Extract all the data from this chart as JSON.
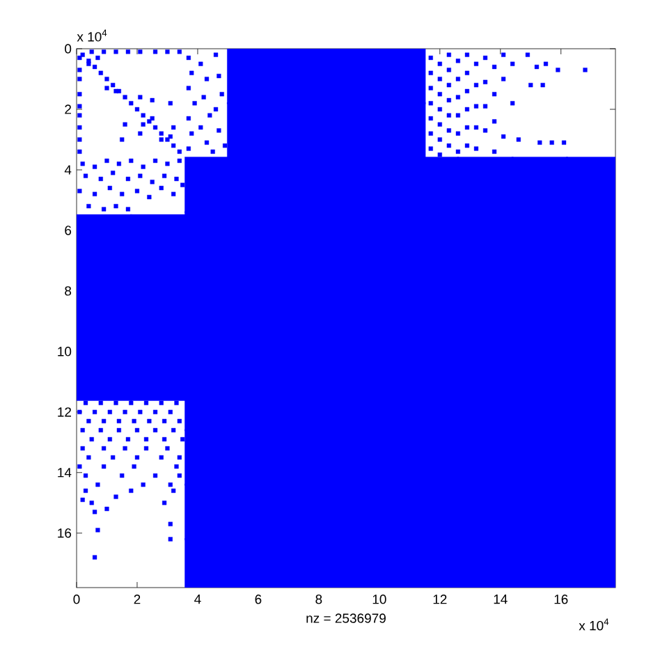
{
  "chart_data": {
    "type": "scatter",
    "xlabel": "nz = 2536979",
    "annotations": [
      "x 10$^{4}$",
      "x 10$^{4}$"
    ],
    "xlim": [
      0,
      17.8
    ],
    "ylim": [
      17.8,
      0
    ],
    "xticks": [
      0,
      2,
      4,
      6,
      8,
      10,
      12,
      14,
      16
    ],
    "yticks": [
      0,
      2,
      4,
      6,
      8,
      10,
      12,
      14,
      16
    ],
    "marker": "square",
    "series": [
      {
        "color": "#0000ff",
        "x": [
          4.5,
          6.3,
          8.1,
          9.9,
          11.7,
          13.5,
          15.3,
          17.1,
          4.5,
          6.3,
          8.1,
          9.9,
          11.7,
          13.5,
          15.3,
          17.1,
          4.5,
          6.3,
          8.1,
          9.9,
          11.7,
          13.5,
          15.3,
          17.1,
          4.5,
          6.3,
          8.1,
          9.9,
          11.7,
          13.5,
          15.3,
          17.1,
          4.5,
          6.3,
          8.1,
          9.9,
          11.7,
          13.5,
          15.3,
          17.1,
          4.5,
          6.3,
          8.1,
          9.9,
          11.7,
          13.5,
          15.3,
          17.1,
          4.5,
          6.3,
          8.1,
          9.9,
          11.7,
          13.5,
          15.3,
          17.1,
          4.5,
          6.3,
          8.1,
          9.9,
          11.7,
          13.5,
          15.3,
          17.1,
          5.9,
          7.5,
          9.1,
          10.6,
          5.9,
          7.5,
          9.1,
          10.6,
          0.9,
          2.7,
          0.9,
          2.7,
          0.9,
          2.7,
          0.9,
          2.7
        ],
        "values": [
          4.5,
          4.5,
          4.5,
          4.5,
          4.5,
          4.5,
          4.5,
          4.5,
          6.3,
          6.3,
          6.3,
          6.3,
          6.3,
          6.3,
          6.3,
          6.3,
          8.1,
          8.1,
          8.1,
          8.1,
          8.1,
          8.1,
          8.1,
          8.1,
          9.9,
          9.9,
          9.9,
          9.9,
          9.9,
          9.9,
          9.9,
          9.9,
          11.7,
          11.7,
          11.7,
          11.7,
          11.7,
          11.7,
          11.7,
          11.7,
          13.5,
          13.5,
          13.5,
          13.5,
          13.5,
          13.5,
          13.5,
          13.5,
          15.3,
          15.3,
          15.3,
          15.3,
          15.3,
          15.3,
          15.3,
          15.3,
          17.1,
          17.1,
          17.1,
          17.1,
          17.1,
          17.1,
          17.1,
          17.1,
          0.9,
          0.9,
          0.9,
          0.9,
          2.7,
          2.7,
          2.7,
          2.7,
          6.4,
          6.4,
          7.8,
          7.8,
          9.3,
          9.3,
          10.7,
          10.7
        ]
      },
      {
        "color": "#0000ff",
        "x": [
          0.2,
          0.4,
          0.6,
          0.8,
          1.0,
          1.2,
          1.4,
          1.6,
          1.8,
          2.0,
          2.2,
          2.4,
          2.6,
          2.8,
          3.0,
          3.2,
          3.4,
          1.0,
          1.3,
          2.2,
          2.5,
          2.8,
          3.1,
          0.1,
          0.1,
          0.1,
          0.1,
          0.1,
          0.1,
          0.1,
          0.1,
          0.1,
          0.5,
          0.9,
          1.3,
          1.7,
          2.1,
          2.6,
          3.0,
          3.4,
          0.4,
          0.7,
          2.1,
          2.5,
          3.1,
          1.6,
          1.5,
          2.1,
          3.2
        ],
        "values": [
          0.2,
          0.4,
          0.6,
          0.8,
          1.0,
          1.2,
          1.4,
          1.6,
          1.8,
          2.0,
          2.2,
          2.4,
          2.6,
          2.8,
          3.0,
          3.2,
          3.4,
          1.3,
          1.4,
          2.5,
          2.3,
          3.0,
          2.9,
          0.3,
          0.7,
          1.0,
          1.5,
          1.9,
          2.2,
          2.6,
          3.0,
          3.4,
          0.1,
          0.1,
          0.1,
          0.1,
          0.1,
          0.1,
          0.1,
          0.1,
          0.5,
          0.3,
          1.6,
          1.7,
          1.8,
          2.5,
          3.0,
          2.8,
          2.6
        ]
      },
      {
        "color": "#0000ff",
        "x": [
          3.7,
          3.8,
          3.7,
          3.9,
          3.7,
          3.8,
          3.7,
          4.1,
          4.3,
          4.2,
          4.4,
          4.1,
          4.3,
          4.6,
          4.7,
          4.8,
          4.6,
          4.7,
          4.9,
          4.5,
          0.2,
          0.6,
          1.0,
          1.4,
          1.8,
          2.2,
          2.6,
          3.0,
          3.4,
          0.3,
          0.8,
          1.2,
          1.7,
          2.1,
          2.5,
          2.9,
          3.3,
          0.1,
          0.6,
          1.1,
          1.5,
          2.0,
          2.4,
          2.8,
          3.2,
          3.5,
          0.4,
          0.9,
          1.3,
          1.7
        ],
        "values": [
          0.3,
          0.8,
          1.3,
          1.8,
          2.3,
          2.8,
          3.3,
          0.5,
          1.0,
          1.6,
          2.2,
          2.6,
          3.1,
          0.2,
          0.9,
          1.5,
          2.0,
          2.7,
          3.2,
          3.4,
          3.8,
          3.9,
          3.7,
          3.8,
          3.7,
          3.9,
          3.7,
          3.8,
          3.7,
          4.2,
          4.3,
          4.1,
          4.3,
          4.2,
          4.4,
          4.2,
          4.3,
          4.7,
          4.8,
          4.6,
          4.8,
          4.7,
          4.9,
          4.6,
          4.8,
          4.5,
          5.2,
          5.3,
          5.2,
          5.3
        ]
      },
      {
        "color": "#0000ff",
        "x": [
          11.7,
          11.7,
          11.7,
          11.7,
          11.7,
          11.7,
          11.7,
          12.0,
          12.0,
          12.0,
          12.0,
          12.0,
          12.0,
          12.0,
          12.3,
          12.3,
          12.3,
          12.3,
          12.3,
          12.3,
          12.3,
          12.6,
          12.6,
          12.6,
          12.6,
          12.6,
          12.6,
          12.9,
          12.9,
          12.9,
          12.9,
          12.9,
          12.9,
          13.2,
          13.2,
          13.2,
          13.2,
          13.2,
          13.5,
          13.5,
          13.5,
          13.5,
          13.8,
          13.8,
          13.8,
          13.8,
          14.1,
          14.1,
          14.1,
          14.4,
          14.4,
          14.9,
          15.2,
          15.5,
          15.0,
          15.4,
          15.9,
          16.8,
          15.3,
          15.7,
          16.1,
          14.6
        ],
        "values": [
          0.3,
          0.8,
          1.3,
          1.8,
          2.3,
          2.8,
          3.3,
          0.5,
          1.0,
          1.5,
          2.0,
          2.5,
          3.0,
          3.5,
          0.2,
          0.7,
          1.2,
          1.7,
          2.2,
          2.7,
          3.2,
          0.4,
          1.0,
          1.6,
          2.2,
          2.8,
          3.4,
          0.2,
          0.8,
          1.4,
          2.0,
          2.6,
          3.2,
          0.5,
          1.2,
          1.9,
          2.6,
          3.3,
          0.3,
          1.1,
          1.9,
          2.7,
          0.6,
          1.5,
          2.4,
          3.4,
          0.2,
          1.0,
          2.9,
          0.5,
          1.8,
          0.2,
          0.6,
          0.5,
          1.2,
          1.2,
          0.7,
          0.7,
          3.1,
          3.1,
          3.1,
          3.0
        ]
      },
      {
        "color": "#0000ff",
        "x": [
          0.3,
          0.8,
          1.3,
          1.8,
          2.3,
          2.8,
          3.3,
          0.1,
          0.6,
          1.1,
          1.6,
          2.1,
          2.6,
          3.1,
          0.4,
          0.9,
          1.4,
          1.9,
          2.4,
          2.9,
          3.4,
          0.2,
          0.8,
          1.4,
          2.0,
          2.6,
          3.2,
          0.5,
          1.1,
          1.7,
          2.3,
          2.9,
          3.5,
          0.2,
          0.9,
          1.6,
          2.3,
          3.0,
          0.4,
          1.2,
          2.0,
          2.8,
          3.4,
          0.1,
          0.9,
          1.9,
          3.3,
          0.3,
          1.5,
          2.6,
          3.4,
          0.7,
          2.2,
          3.1,
          0.6,
          0.7,
          3.1,
          3.1,
          0.2,
          0.6,
          1.0,
          1.3,
          1.8,
          2.9,
          3.2,
          0.5,
          0.3
        ],
        "values": [
          11.7,
          11.7,
          11.7,
          11.7,
          11.7,
          11.7,
          11.7,
          12.0,
          12.0,
          12.0,
          12.0,
          12.0,
          12.0,
          12.0,
          12.3,
          12.3,
          12.3,
          12.3,
          12.3,
          12.3,
          12.3,
          12.6,
          12.6,
          12.6,
          12.6,
          12.6,
          12.6,
          12.9,
          12.9,
          12.9,
          12.9,
          12.9,
          12.9,
          13.2,
          13.2,
          13.2,
          13.2,
          13.2,
          13.5,
          13.5,
          13.5,
          13.5,
          13.5,
          13.8,
          13.8,
          13.8,
          13.8,
          14.1,
          14.1,
          14.1,
          14.1,
          14.4,
          14.4,
          14.4,
          16.8,
          15.9,
          16.2,
          15.7,
          14.9,
          15.3,
          15.2,
          14.8,
          14.6,
          15.0,
          14.6,
          15.0,
          14.6
        ]
      }
    ]
  }
}
